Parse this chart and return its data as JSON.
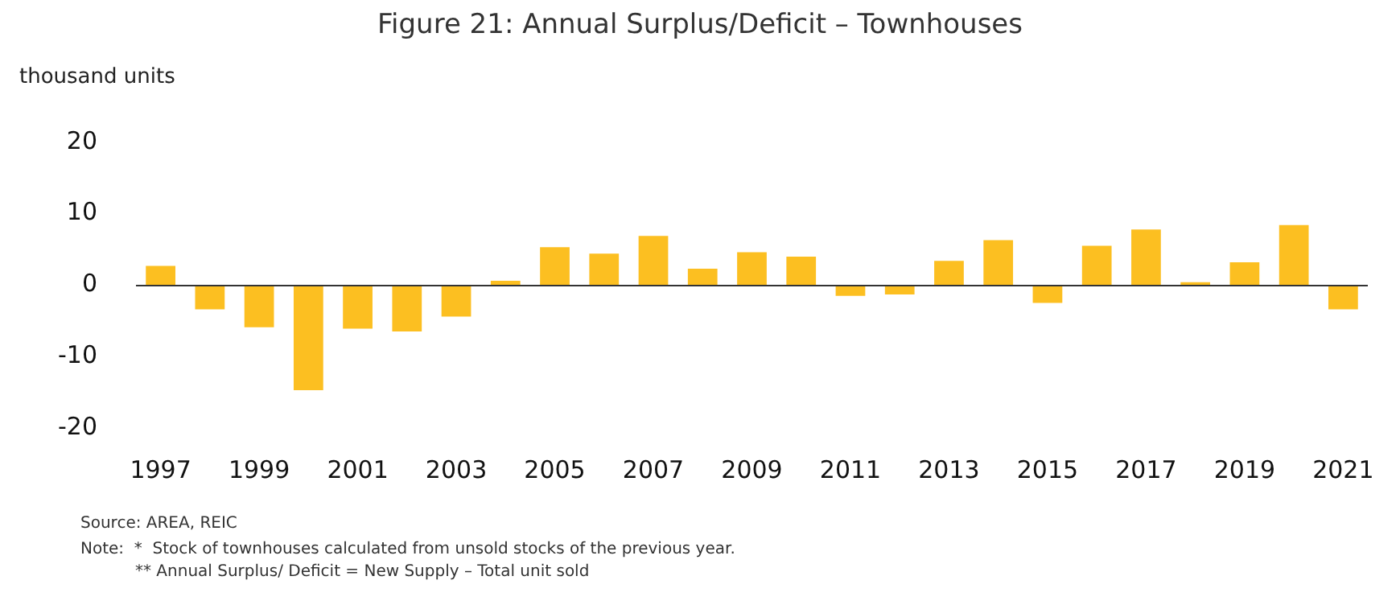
{
  "chart_data": {
    "type": "bar",
    "title": "Figure 21: Annual Surplus/Deficit – Townhouses",
    "ylabel": "thousand units",
    "categories": [
      "1997",
      null,
      "1999",
      null,
      "2001",
      null,
      "2003",
      null,
      "2005",
      null,
      "2007",
      null,
      "2009",
      null,
      "2011",
      null,
      "2013",
      null,
      "2015",
      null,
      "2017",
      null,
      "2019",
      null,
      "2021"
    ],
    "values": [
      2.7,
      -3.4,
      -5.9,
      -14.7,
      -6.1,
      -6.5,
      -4.4,
      0.6,
      5.3,
      4.4,
      6.9,
      2.3,
      4.6,
      4.0,
      -1.5,
      -1.3,
      3.4,
      6.3,
      -2.5,
      5.5,
      7.8,
      0.4,
      3.2,
      8.4,
      -3.4
    ],
    "color": "#fcbf21",
    "ylim": [
      -20,
      20
    ],
    "yticks": [
      -20,
      -10,
      0,
      10,
      20
    ],
    "grid": false,
    "legend": false,
    "ref_lines": [
      {
        "axis": "y",
        "value": 0,
        "color": "#333333"
      }
    ],
    "annotations": [
      "Source: AREA, REIC",
      "Note:  *  Stock of townhouses calculated from unsold stocks of the previous year.",
      "** Annual Surplus/ Deficit = New Supply – Total unit sold"
    ]
  }
}
